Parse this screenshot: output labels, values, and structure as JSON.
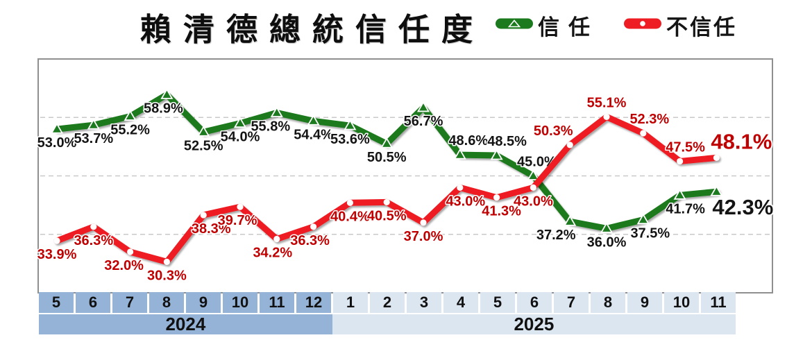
{
  "title": "賴清德總統信任度",
  "legend": {
    "position": "top-right",
    "items": [
      {
        "label": "信任",
        "color": "#1b7a1e",
        "marker": "triangle"
      },
      {
        "label": "不信任",
        "color": "#ee1c23",
        "marker": "circle"
      }
    ]
  },
  "chart_data": {
    "type": "line",
    "title": "賴清德總統信任度",
    "xlabel": "",
    "ylabel": "",
    "ylim": [
      25,
      65
    ],
    "gridlines": [
      35,
      45,
      55
    ],
    "grid": "dashed-horizontal",
    "categories": [
      "5",
      "6",
      "7",
      "8",
      "9",
      "10",
      "11",
      "12",
      "1",
      "2",
      "3",
      "4",
      "5",
      "6",
      "7",
      "8",
      "9",
      "10",
      "11"
    ],
    "year_groups": [
      {
        "label": "2024",
        "span": 8,
        "color": "#95b3d7"
      },
      {
        "label": "2025",
        "span": 11,
        "color": "#dce6f1"
      }
    ],
    "series": [
      {
        "name": "信任",
        "color": "#1b7a1e",
        "label_color": "#141414",
        "marker": "triangle",
        "values": [
          53.0,
          53.7,
          55.2,
          58.9,
          52.5,
          54.0,
          55.8,
          54.4,
          53.6,
          50.5,
          56.7,
          48.6,
          48.5,
          45.0,
          37.2,
          36.0,
          37.5,
          41.7,
          42.3
        ],
        "label_side": [
          "below",
          "below",
          "below",
          "below",
          "below",
          "below",
          "below",
          "below",
          "below",
          "below",
          "below",
          "above",
          "above",
          "above",
          "below",
          "below",
          "below",
          "below",
          "end-below"
        ],
        "label_dx": [
          0,
          0,
          0,
          -5,
          0,
          0,
          -9,
          0,
          0,
          0,
          0,
          12,
          15,
          5,
          -20,
          0,
          10,
          8,
          0
        ]
      },
      {
        "name": "不信任",
        "color": "#ee1c23",
        "label_color": "#c00000",
        "marker": "circle",
        "values": [
          33.9,
          36.3,
          32.0,
          30.3,
          38.3,
          39.7,
          34.2,
          36.3,
          40.4,
          40.5,
          37.0,
          43.0,
          41.3,
          43.0,
          50.3,
          55.1,
          52.3,
          47.5,
          48.1
        ],
        "label_side": [
          "below",
          "below",
          "below",
          "below",
          "below",
          "below",
          "below",
          "below",
          "below",
          "below",
          "below",
          "below",
          "below",
          "below",
          "above",
          "above",
          "above",
          "above",
          "end-above"
        ],
        "label_dx": [
          0,
          0,
          -9,
          0,
          11,
          -4,
          -6,
          -5,
          0,
          0,
          0,
          8,
          7,
          0,
          -24,
          0,
          9,
          8,
          0
        ]
      }
    ]
  }
}
